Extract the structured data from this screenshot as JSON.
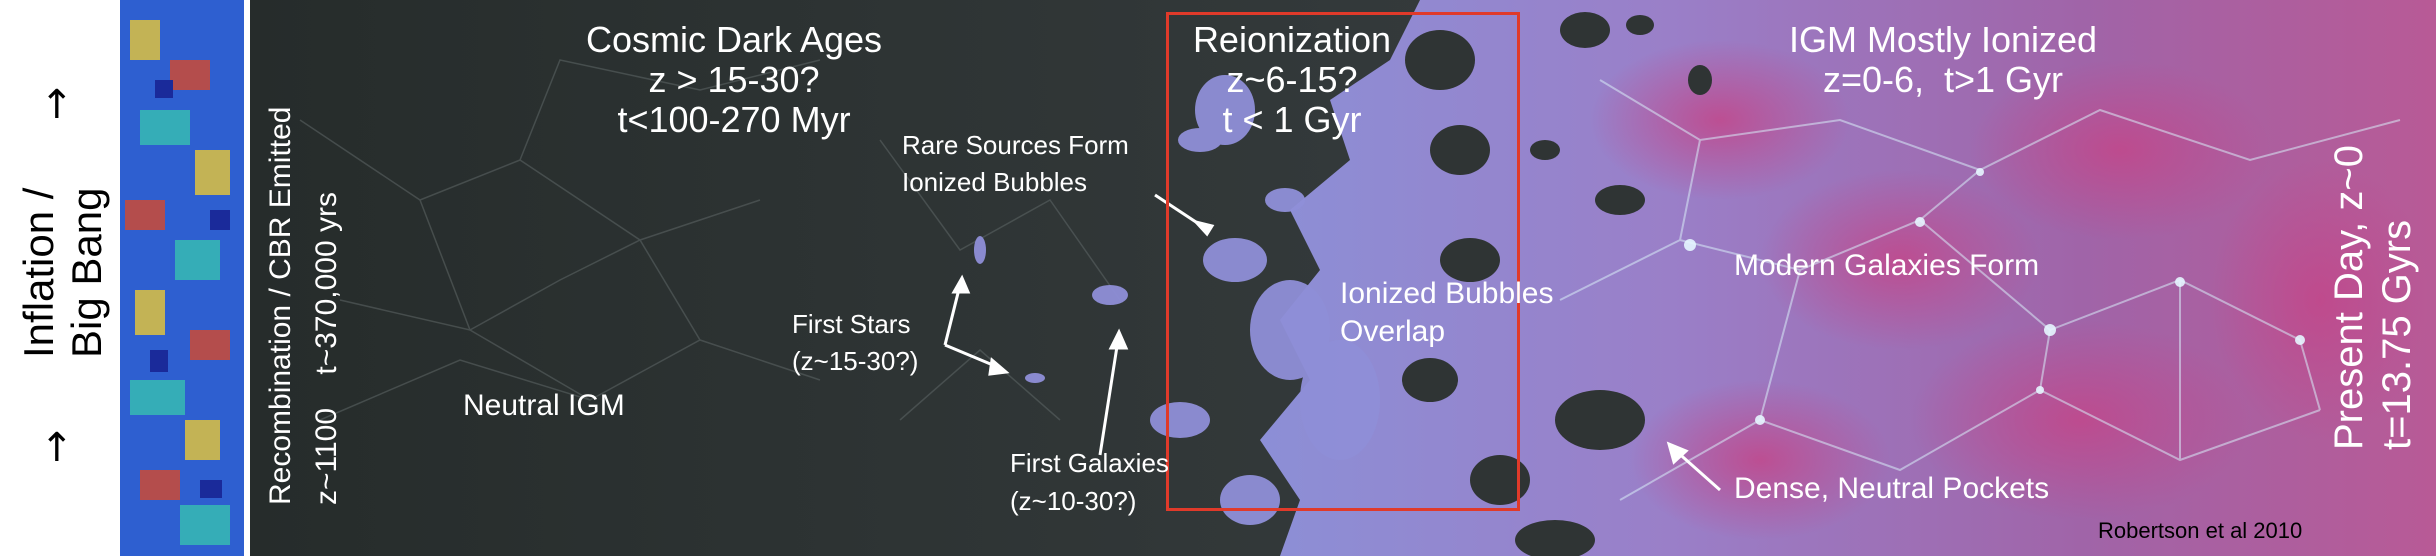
{
  "left_panel": {
    "title_line1": "Inflation /",
    "title_line2": "Big Bang"
  },
  "recombination": {
    "line1": "Recombination / CBR Emitted",
    "line2": "z~1100    t~370,000 yrs"
  },
  "dark_ages": {
    "title": "Cosmic Dark Ages",
    "redshift": "z > 15-30?",
    "time": "t<100-270 Myr"
  },
  "reionization": {
    "title": "Reionization",
    "redshift": "z~6-15?",
    "time": "t < 1 Gyr"
  },
  "igm_ionized": {
    "title": "IGM Mostly Ionized",
    "detail": "z=0-6,  t>1 Gyr"
  },
  "present_day": {
    "line1": "Present Day, z~0",
    "line2": "t=13.75 Gyrs"
  },
  "annotations": {
    "neutral_igm": "Neutral IGM",
    "rare_sources_line1": "Rare Sources Form",
    "rare_sources_line2": "Ionized Bubbles",
    "first_stars_line1": "First Stars",
    "first_stars_line2": "(z~15-30?)",
    "first_galaxies_line1": "First Galaxies",
    "first_galaxies_line2": "(z~10-30?)",
    "bubbles_overlap_line1": "Ionized Bubbles",
    "bubbles_overlap_line2": "Overlap",
    "modern_galaxies": "Modern Galaxies Form",
    "dense_pockets": "Dense, Neutral Pockets"
  },
  "credit": "Robertson et al 2010",
  "colors": {
    "dark_ages_bg": "#2f3634",
    "ionized_blue": "#8f8fd8",
    "ionized_magenta": "#b7528f",
    "highlight_box": "#e03a2a"
  }
}
